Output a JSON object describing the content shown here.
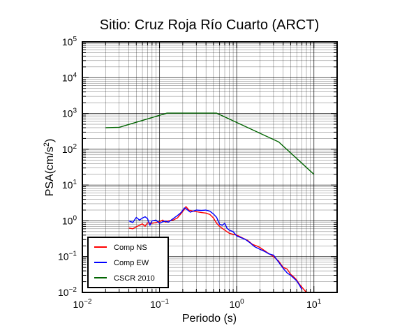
{
  "chart_data": {
    "type": "line",
    "title": "Sitio: Cruz Roja Río Cuarto (ARCT)",
    "xlabel": "Periodo (s)",
    "ylabel": "PSA(cm/s",
    "ylabel_sup": "2",
    "ylabel_close": ")",
    "xscale": "log",
    "yscale": "log",
    "xlim": [
      0.01,
      20
    ],
    "ylim": [
      0.01,
      100000
    ],
    "x_tick_labels": [
      {
        "base": "10",
        "exp": "−2"
      },
      {
        "base": "10",
        "exp": "−1"
      },
      {
        "base": "10",
        "exp": "0"
      },
      {
        "base": "10",
        "exp": "1"
      }
    ],
    "y_tick_labels": [
      {
        "base": "10",
        "exp": "−2"
      },
      {
        "base": "10",
        "exp": "−1"
      },
      {
        "base": "10",
        "exp": "0"
      },
      {
        "base": "10",
        "exp": "1"
      },
      {
        "base": "10",
        "exp": "2"
      },
      {
        "base": "10",
        "exp": "3"
      },
      {
        "base": "10",
        "exp": "4"
      },
      {
        "base": "10",
        "exp": "5"
      }
    ],
    "grid": true,
    "legend_position": "bottom-left",
    "series": [
      {
        "name": "Comp NS",
        "color": "#ff0000",
        "points": [
          [
            0.04,
            0.63
          ],
          [
            0.045,
            0.6
          ],
          [
            0.05,
            0.68
          ],
          [
            0.055,
            0.75
          ],
          [
            0.06,
            0.82
          ],
          [
            0.065,
            0.7
          ],
          [
            0.07,
            0.88
          ],
          [
            0.08,
            0.85
          ],
          [
            0.09,
            0.9
          ],
          [
            0.1,
            0.95
          ],
          [
            0.11,
            1.05
          ],
          [
            0.12,
            0.92
          ],
          [
            0.13,
            1.0
          ],
          [
            0.15,
            1.05
          ],
          [
            0.17,
            1.2
          ],
          [
            0.19,
            1.6
          ],
          [
            0.21,
            2.1
          ],
          [
            0.22,
            2.5
          ],
          [
            0.24,
            2.0
          ],
          [
            0.26,
            1.9
          ],
          [
            0.3,
            1.8
          ],
          [
            0.35,
            1.7
          ],
          [
            0.4,
            1.65
          ],
          [
            0.45,
            1.5
          ],
          [
            0.5,
            1.2
          ],
          [
            0.55,
            0.85
          ],
          [
            0.6,
            0.7
          ],
          [
            0.7,
            0.55
          ],
          [
            0.8,
            0.45
          ],
          [
            0.9,
            0.42
          ],
          [
            1.0,
            0.4
          ],
          [
            1.2,
            0.33
          ],
          [
            1.4,
            0.28
          ],
          [
            1.6,
            0.22
          ],
          [
            1.8,
            0.2
          ],
          [
            2.0,
            0.18
          ],
          [
            2.5,
            0.13
          ],
          [
            3.0,
            0.1
          ],
          [
            3.5,
            0.075
          ],
          [
            4.0,
            0.05
          ],
          [
            4.5,
            0.045
          ],
          [
            5.0,
            0.032
          ],
          [
            5.5,
            0.027
          ],
          [
            6.0,
            0.022
          ],
          [
            6.5,
            0.017
          ],
          [
            7.0,
            0.014
          ],
          [
            8.0,
            0.01
          ]
        ]
      },
      {
        "name": "Comp EW",
        "color": "#0000ff",
        "points": [
          [
            0.04,
            1.0
          ],
          [
            0.045,
            0.9
          ],
          [
            0.05,
            1.25
          ],
          [
            0.055,
            1.05
          ],
          [
            0.06,
            1.2
          ],
          [
            0.065,
            1.3
          ],
          [
            0.07,
            1.15
          ],
          [
            0.075,
            0.75
          ],
          [
            0.08,
            1.0
          ],
          [
            0.09,
            1.05
          ],
          [
            0.1,
            0.85
          ],
          [
            0.11,
            0.95
          ],
          [
            0.12,
            0.98
          ],
          [
            0.13,
            0.92
          ],
          [
            0.15,
            1.15
          ],
          [
            0.17,
            1.4
          ],
          [
            0.19,
            1.7
          ],
          [
            0.21,
            2.3
          ],
          [
            0.22,
            2.2
          ],
          [
            0.25,
            1.75
          ],
          [
            0.3,
            2.0
          ],
          [
            0.35,
            1.95
          ],
          [
            0.4,
            2.0
          ],
          [
            0.45,
            1.85
          ],
          [
            0.5,
            1.55
          ],
          [
            0.55,
            1.25
          ],
          [
            0.6,
            0.8
          ],
          [
            0.65,
            0.75
          ],
          [
            0.7,
            0.85
          ],
          [
            0.75,
            0.62
          ],
          [
            0.8,
            0.55
          ],
          [
            0.9,
            0.5
          ],
          [
            1.0,
            0.38
          ],
          [
            1.1,
            0.35
          ],
          [
            1.3,
            0.3
          ],
          [
            1.5,
            0.24
          ],
          [
            1.7,
            0.19
          ],
          [
            2.0,
            0.16
          ],
          [
            2.3,
            0.14
          ],
          [
            2.6,
            0.12
          ],
          [
            3.0,
            0.11
          ],
          [
            3.5,
            0.07
          ],
          [
            4.0,
            0.047
          ],
          [
            4.5,
            0.035
          ],
          [
            5.0,
            0.03
          ],
          [
            5.5,
            0.025
          ],
          [
            6.0,
            0.021
          ],
          [
            6.5,
            0.016
          ],
          [
            7.0,
            0.012
          ]
        ]
      },
      {
        "name": "CSCR 2010",
        "color": "#006400",
        "points": [
          [
            0.02,
            400
          ],
          [
            0.03,
            410
          ],
          [
            0.125,
            1020
          ],
          [
            0.55,
            1020
          ],
          [
            3.5,
            160
          ],
          [
            10.0,
            20
          ]
        ]
      }
    ]
  }
}
